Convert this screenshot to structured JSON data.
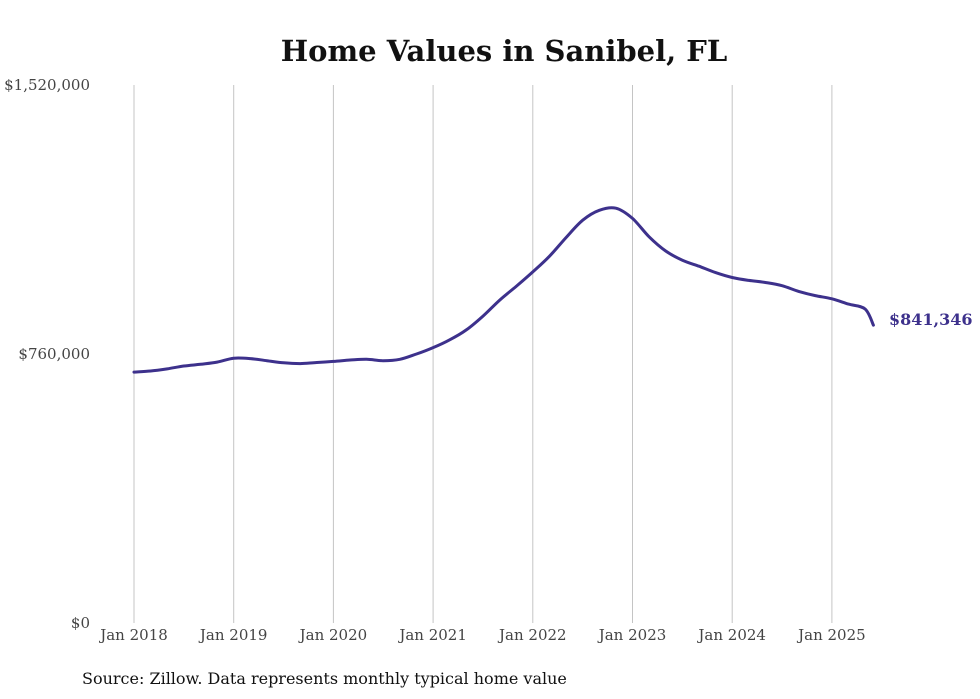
{
  "chart_data": {
    "type": "line",
    "title": "Home Values in Sanibel, FL",
    "source_note": "Source: Zillow. Data represents monthly typical home value",
    "xlabel": "",
    "ylabel": "",
    "x_ticks": [
      "Jan 2018",
      "Jan 2019",
      "Jan 2020",
      "Jan 2021",
      "Jan 2022",
      "Jan 2023",
      "Jan 2024",
      "Jan 2025"
    ],
    "y_ticks": [
      "$0",
      "$760,000",
      "$1,520,000"
    ],
    "ylim": [
      0,
      1520000
    ],
    "xlim": [
      "2018-01",
      "2025-06"
    ],
    "grid": "vertical lines at x ticks",
    "line_color": "#3d318c",
    "end_label": "$841,346",
    "series": [
      {
        "points": [
          [
            "2018-01",
            709000
          ],
          [
            "2018-03",
            712000
          ],
          [
            "2018-05",
            718000
          ],
          [
            "2018-07",
            726000
          ],
          [
            "2018-09",
            731000
          ],
          [
            "2018-11",
            737000
          ],
          [
            "2019-01",
            748000
          ],
          [
            "2019-03",
            747000
          ],
          [
            "2019-05",
            741000
          ],
          [
            "2019-07",
            735000
          ],
          [
            "2019-09",
            733000
          ],
          [
            "2019-11",
            736000
          ],
          [
            "2020-01",
            739000
          ],
          [
            "2020-03",
            743000
          ],
          [
            "2020-05",
            745000
          ],
          [
            "2020-07",
            741000
          ],
          [
            "2020-09",
            745000
          ],
          [
            "2020-11",
            760000
          ],
          [
            "2021-01",
            778000
          ],
          [
            "2021-03",
            800000
          ],
          [
            "2021-05",
            828000
          ],
          [
            "2021-07",
            867000
          ],
          [
            "2021-09",
            912000
          ],
          [
            "2021-11",
            951000
          ],
          [
            "2022-01",
            992000
          ],
          [
            "2022-03",
            1036000
          ],
          [
            "2022-05",
            1089000
          ],
          [
            "2022-07",
            1138000
          ],
          [
            "2022-09",
            1166000
          ],
          [
            "2022-11",
            1172000
          ],
          [
            "2023-01",
            1143000
          ],
          [
            "2023-03",
            1091000
          ],
          [
            "2023-05",
            1051000
          ],
          [
            "2023-07",
            1025000
          ],
          [
            "2023-09",
            1008000
          ],
          [
            "2023-11",
            990000
          ],
          [
            "2024-01",
            976000
          ],
          [
            "2024-03",
            968000
          ],
          [
            "2024-05",
            962000
          ],
          [
            "2024-07",
            953000
          ],
          [
            "2024-09",
            937000
          ],
          [
            "2024-11",
            925000
          ],
          [
            "2025-01",
            916000
          ],
          [
            "2025-03",
            901000
          ],
          [
            "2025-05",
            887000
          ],
          [
            "2025-06",
            841346
          ]
        ]
      }
    ]
  }
}
